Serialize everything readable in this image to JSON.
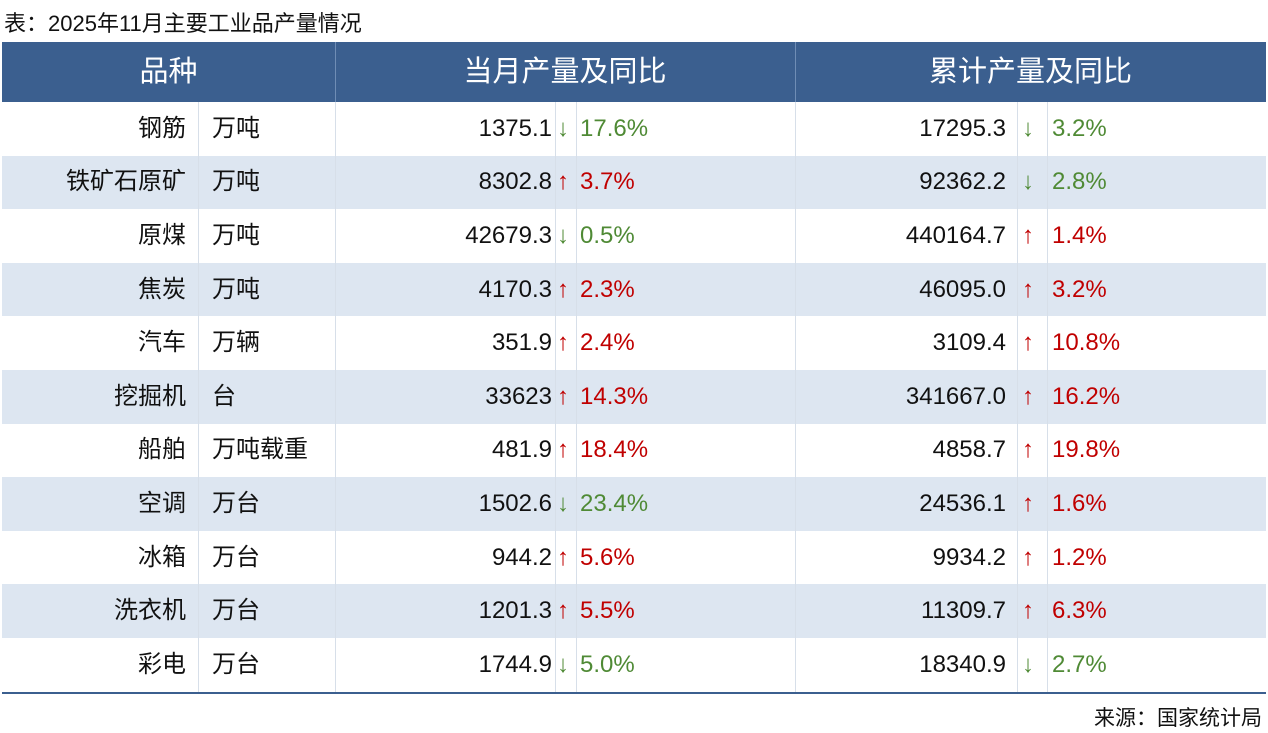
{
  "title": "表：2025年11月主要工业品产量情况",
  "table": {
    "header": [
      "品种",
      "当月产量及同比",
      "累计产量及同比"
    ],
    "up_color": "#c00000",
    "down_color": "#4f8a35",
    "rows": [
      {
        "name": "钢筋",
        "unit": "万吨",
        "month": {
          "value": "1375.1",
          "dir": "↓",
          "pct": "17.6%"
        },
        "cum": {
          "value": "17295.3",
          "dir": "↓",
          "pct": "3.2%"
        }
      },
      {
        "name": "铁矿石原矿",
        "unit": "万吨",
        "month": {
          "value": "8302.8",
          "dir": "↑",
          "pct": "3.7%"
        },
        "cum": {
          "value": "92362.2",
          "dir": "↓",
          "pct": "2.8%"
        }
      },
      {
        "name": "原煤",
        "unit": "万吨",
        "month": {
          "value": "42679.3",
          "dir": "↓",
          "pct": "0.5%"
        },
        "cum": {
          "value": "440164.7",
          "dir": "↑",
          "pct": "1.4%"
        }
      },
      {
        "name": "焦炭",
        "unit": "万吨",
        "month": {
          "value": "4170.3",
          "dir": "↑",
          "pct": "2.3%"
        },
        "cum": {
          "value": "46095.0",
          "dir": "↑",
          "pct": "3.2%"
        }
      },
      {
        "name": "汽车",
        "unit": "万辆",
        "month": {
          "value": "351.9",
          "dir": "↑",
          "pct": "2.4%"
        },
        "cum": {
          "value": "3109.4",
          "dir": "↑",
          "pct": "10.8%"
        }
      },
      {
        "name": "挖掘机",
        "unit": "台",
        "month": {
          "value": "33623",
          "dir": "↑",
          "pct": "14.3%"
        },
        "cum": {
          "value": "341667.0",
          "dir": "↑",
          "pct": "16.2%"
        }
      },
      {
        "name": "船舶",
        "unit": "万吨载重",
        "month": {
          "value": "481.9",
          "dir": "↑",
          "pct": "18.4%"
        },
        "cum": {
          "value": "4858.7",
          "dir": "↑",
          "pct": "19.8%"
        }
      },
      {
        "name": "空调",
        "unit": "万台",
        "month": {
          "value": "1502.6",
          "dir": "↓",
          "pct": "23.4%"
        },
        "cum": {
          "value": "24536.1",
          "dir": "↑",
          "pct": "1.6%"
        }
      },
      {
        "name": "冰箱",
        "unit": "万台",
        "month": {
          "value": "944.2",
          "dir": "↑",
          "pct": "5.6%"
        },
        "cum": {
          "value": "9934.2",
          "dir": "↑",
          "pct": "1.2%"
        }
      },
      {
        "name": "洗衣机",
        "unit": "万台",
        "month": {
          "value": "1201.3",
          "dir": "↑",
          "pct": "5.5%"
        },
        "cum": {
          "value": "11309.7",
          "dir": "↑",
          "pct": "6.3%"
        }
      },
      {
        "name": "彩电",
        "unit": "万台",
        "month": {
          "value": "1744.9",
          "dir": "↓",
          "pct": "5.0%"
        },
        "cum": {
          "value": "18340.9",
          "dir": "↓",
          "pct": "2.7%"
        }
      }
    ]
  },
  "source": "来源：国家统计局"
}
